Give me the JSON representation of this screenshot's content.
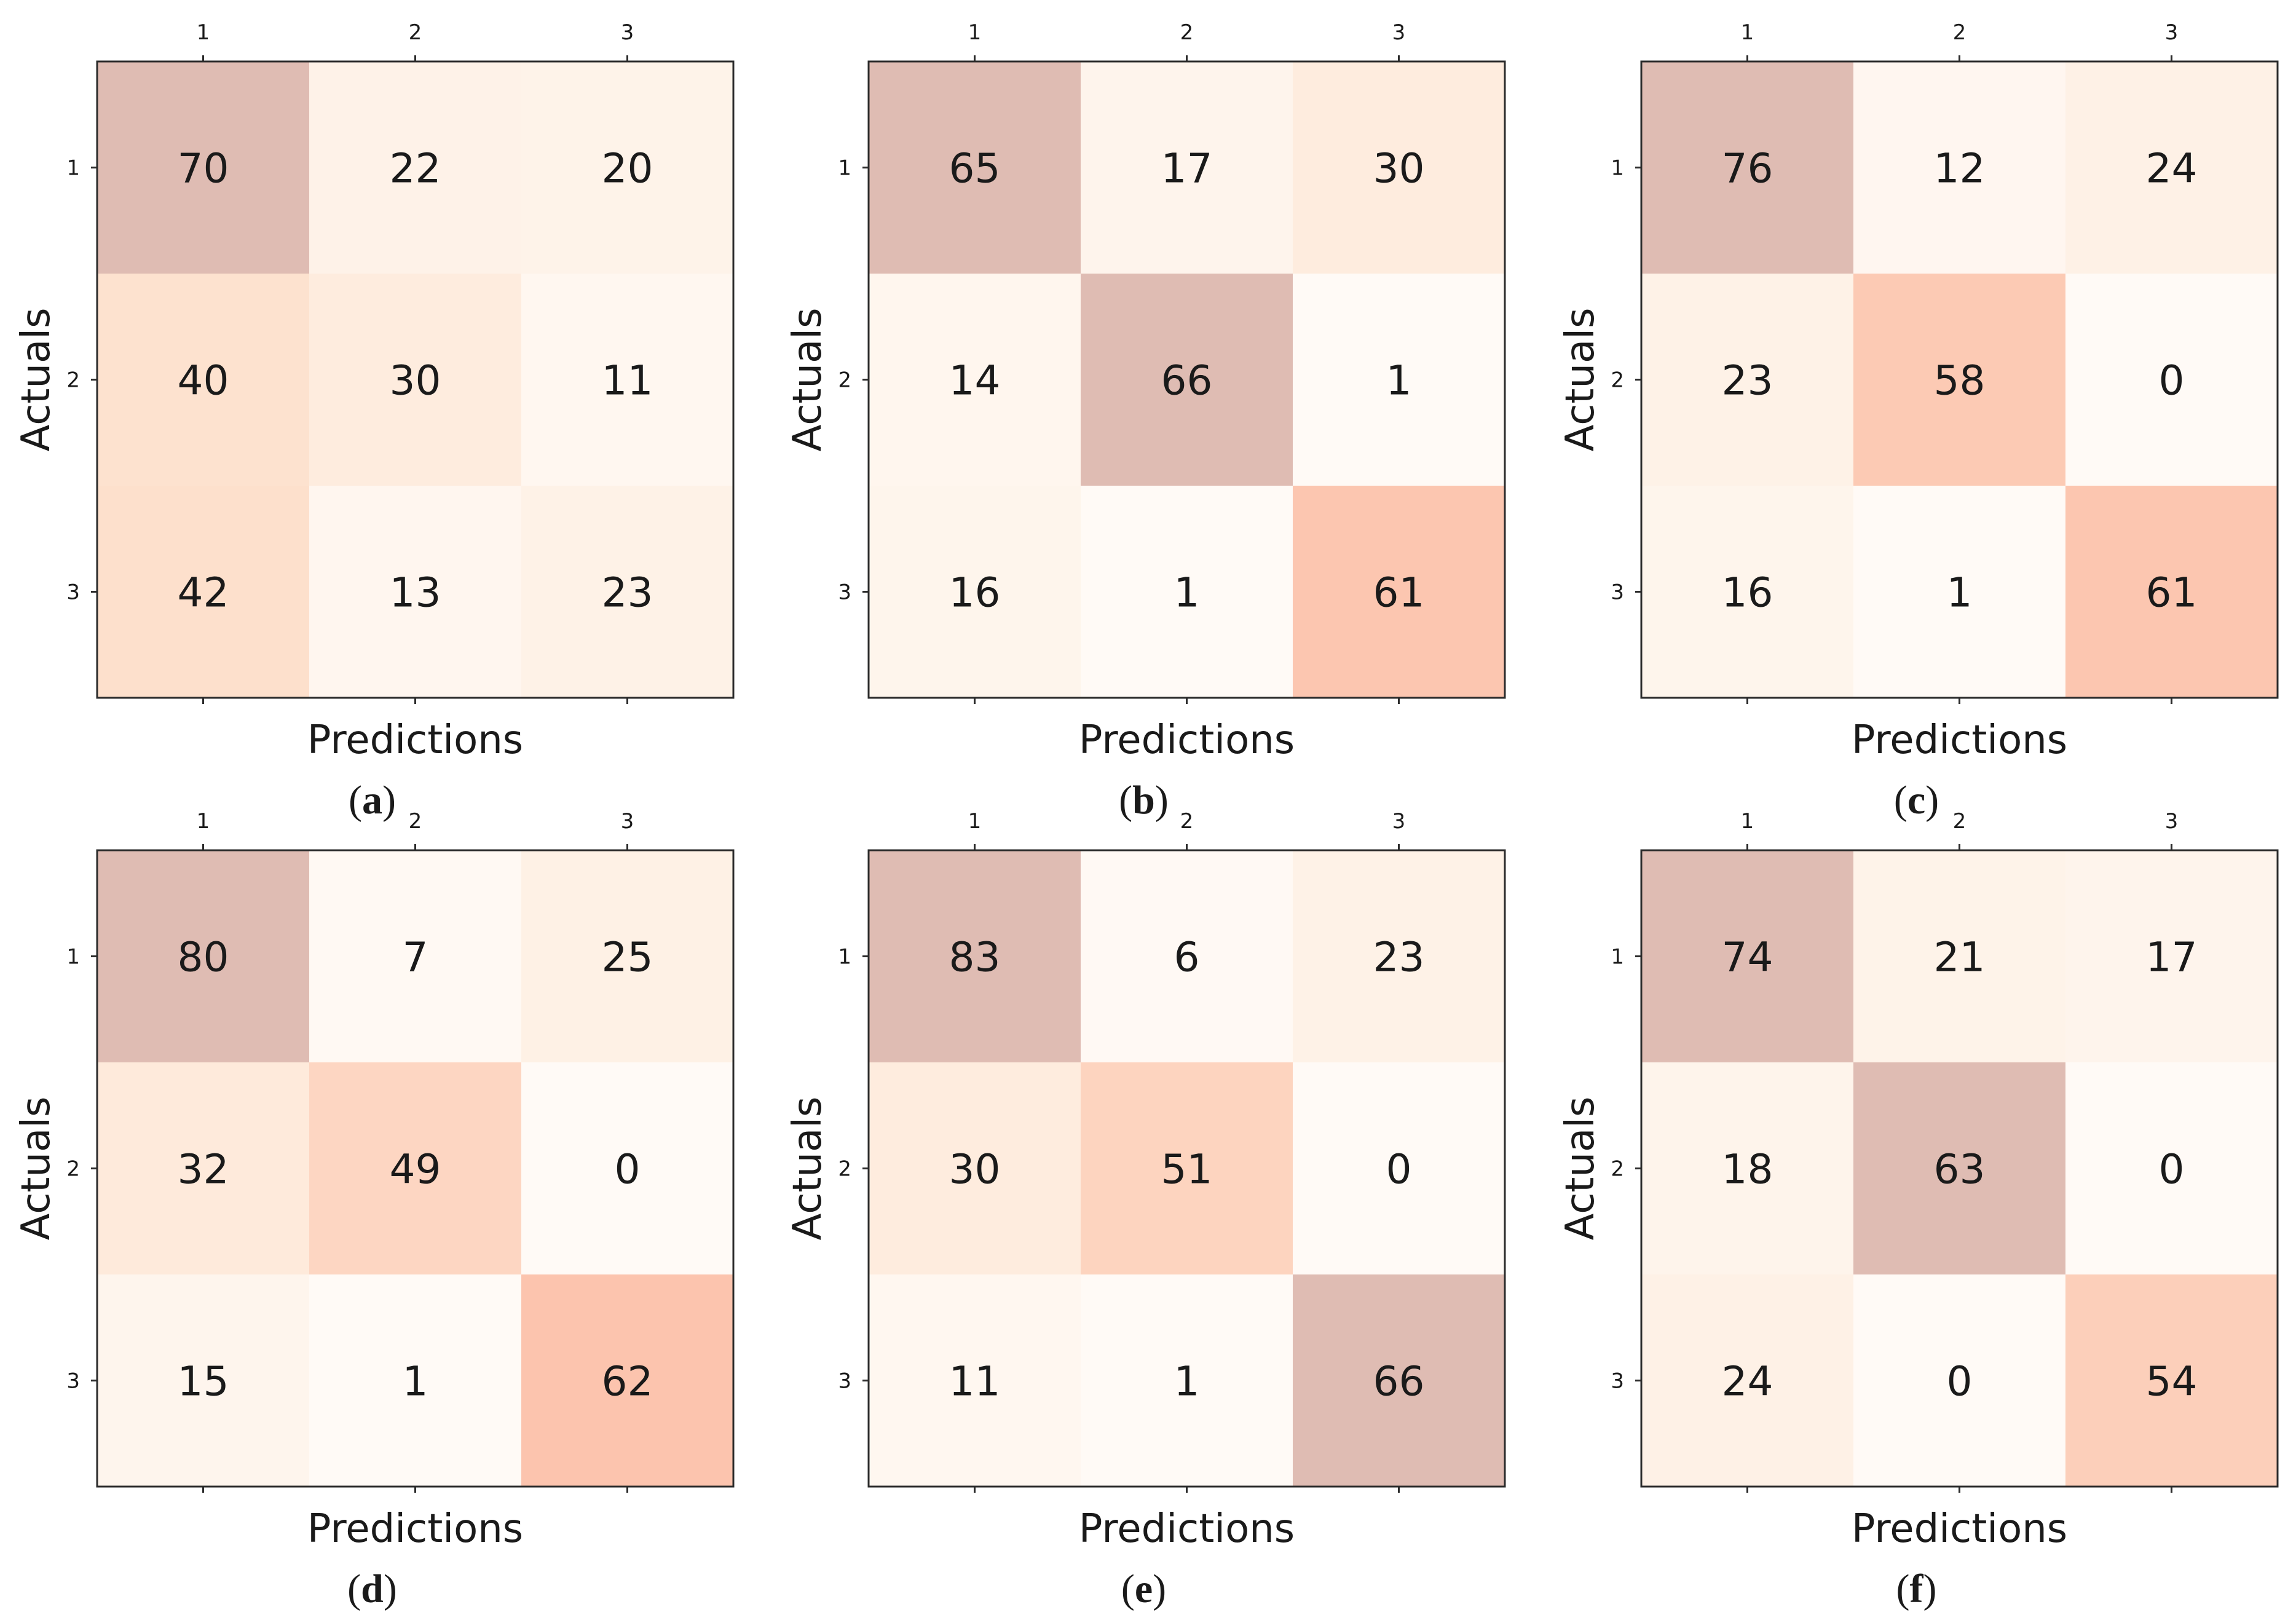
{
  "chart_data": [
    {
      "type": "heatmap",
      "panel": "(a)",
      "panel_letter": "a",
      "xlabel": "Predictions",
      "ylabel": "Actuals",
      "x_ticks": [
        "1",
        "2",
        "3"
      ],
      "y_ticks": [
        "1",
        "2",
        "3"
      ],
      "values": [
        [
          70,
          22,
          20
        ],
        [
          40,
          30,
          11
        ],
        [
          42,
          13,
          23
        ]
      ]
    },
    {
      "type": "heatmap",
      "panel": "(b)",
      "panel_letter": "b",
      "xlabel": "Predictions",
      "ylabel": "Actuals",
      "x_ticks": [
        "1",
        "2",
        "3"
      ],
      "y_ticks": [
        "1",
        "2",
        "3"
      ],
      "values": [
        [
          65,
          17,
          30
        ],
        [
          14,
          66,
          1
        ],
        [
          16,
          1,
          61
        ]
      ]
    },
    {
      "type": "heatmap",
      "panel": "(c)",
      "panel_letter": "c",
      "xlabel": "Predictions",
      "ylabel": "Actuals",
      "x_ticks": [
        "1",
        "2",
        "3"
      ],
      "y_ticks": [
        "1",
        "2",
        "3"
      ],
      "values": [
        [
          76,
          12,
          24
        ],
        [
          23,
          58,
          0
        ],
        [
          16,
          1,
          61
        ]
      ]
    },
    {
      "type": "heatmap",
      "panel": "(d)",
      "panel_letter": "d",
      "xlabel": "Predictions",
      "ylabel": "Actuals",
      "x_ticks": [
        "1",
        "2",
        "3"
      ],
      "y_ticks": [
        "1",
        "2",
        "3"
      ],
      "values": [
        [
          80,
          7,
          25
        ],
        [
          32,
          49,
          0
        ],
        [
          15,
          1,
          62
        ]
      ]
    },
    {
      "type": "heatmap",
      "panel": "(e)",
      "panel_letter": "e",
      "xlabel": "Predictions",
      "ylabel": "Actuals",
      "x_ticks": [
        "1",
        "2",
        "3"
      ],
      "y_ticks": [
        "1",
        "2",
        "3"
      ],
      "values": [
        [
          83,
          6,
          23
        ],
        [
          30,
          51,
          0
        ],
        [
          11,
          1,
          66
        ]
      ]
    },
    {
      "type": "heatmap",
      "panel": "(f)",
      "panel_letter": "f",
      "xlabel": "Predictions",
      "ylabel": "Actuals",
      "x_ticks": [
        "1",
        "2",
        "3"
      ],
      "y_ticks": [
        "1",
        "2",
        "3"
      ],
      "values": [
        [
          74,
          21,
          17
        ],
        [
          18,
          63,
          0
        ],
        [
          24,
          0,
          54
        ]
      ]
    }
  ],
  "colors": {
    "high_diagonal": "#dfbcb3",
    "peach_strong": "#fcc3ad",
    "peach_mid": "#fde0cc",
    "peach_light": "#fef1e6",
    "near_white": "#fffaf6",
    "frame": "#2b2b2b"
  }
}
